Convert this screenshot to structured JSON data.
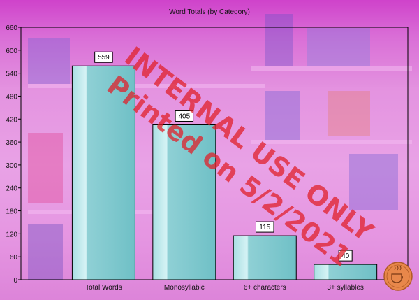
{
  "chart_data": {
    "type": "bar",
    "title": "Word Totals (by Category)",
    "xlabel": "",
    "ylabel": "",
    "categories": [
      "Total Words",
      "Monosyllabic",
      "6+ characters",
      "3+ syllables"
    ],
    "values": [
      559,
      405,
      115,
      40
    ],
    "ylim": [
      0,
      660
    ],
    "yticks": [
      0,
      60,
      120,
      180,
      240,
      300,
      360,
      420,
      480,
      540,
      600,
      660
    ],
    "data_labels": [
      "559",
      "405",
      "115",
      "40"
    ],
    "grid": false,
    "legend": "none"
  },
  "watermark": {
    "line1": "INTERNAL USE ONLY",
    "line2": "Printed on 5/2/2021"
  },
  "colors": {
    "bar_fill_light": "#bde9ec",
    "bar_fill_dark": "#7cc7cc",
    "bar_stroke": "#000000",
    "watermark": "#e0202a",
    "background_tint": "#d65fd3"
  },
  "icons": {
    "corner_logo": "coffee-cup-stamp-icon"
  }
}
